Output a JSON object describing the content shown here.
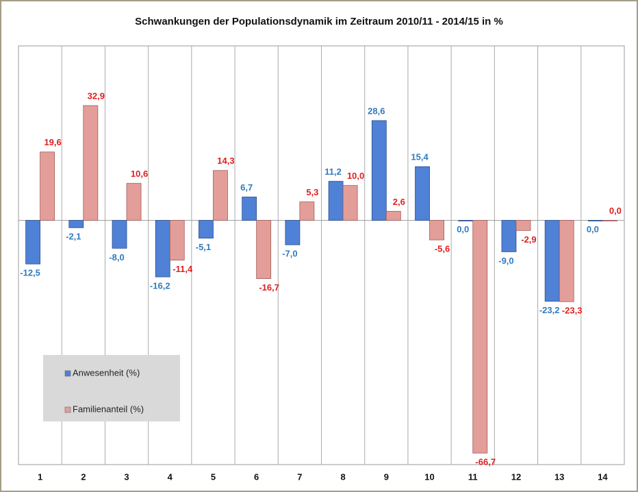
{
  "chart_data": {
    "type": "bar",
    "title": "Schwankungen der Populationsdynamik im Zeitraum 2010/11 - 2014/15 in %",
    "categories": [
      "1",
      "2",
      "3",
      "4",
      "5",
      "6",
      "7",
      "8",
      "9",
      "10",
      "11",
      "12",
      "13",
      "14"
    ],
    "series": [
      {
        "name": "Anwesenheit (%)",
        "color": "#4f81d6",
        "label_color": "#2f7bbf",
        "values": [
          -12.5,
          -2.1,
          -8.0,
          -16.2,
          -5.1,
          6.7,
          -7.0,
          11.2,
          28.6,
          15.4,
          0.0,
          -9.0,
          -23.2,
          0.0
        ],
        "value_labels": [
          "-12,5",
          "-2,1",
          "-8,0",
          "-16,2",
          "-5,1",
          "6,7",
          "-7,0",
          "11,2",
          "28,6",
          "15,4",
          "0,0",
          "-9,0",
          "-23,2",
          "0,0"
        ]
      },
      {
        "name": "Familienanteil (%)",
        "color": "#e39e9a",
        "label_color": "#e01e1e",
        "values": [
          19.6,
          32.9,
          10.6,
          -11.4,
          14.3,
          -16.7,
          5.3,
          10.0,
          2.6,
          -5.6,
          -66.7,
          -2.9,
          -23.3,
          0.0
        ],
        "value_labels": [
          "19,6",
          "32,9",
          "10,6",
          "-11,4",
          "14,3",
          "-16,7",
          "5,3",
          "10,0",
          "2,6",
          "-5,6",
          "-66,7",
          "-2,9",
          "-23,3",
          "0,0"
        ]
      }
    ],
    "ylim": [
      -70,
      50
    ],
    "legend": "lower left"
  }
}
